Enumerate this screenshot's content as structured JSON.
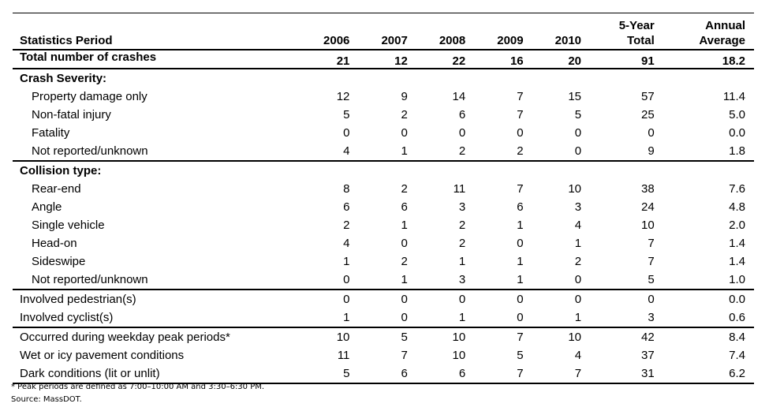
{
  "header": {
    "label": "Statistics Period",
    "years": [
      "2006",
      "2007",
      "2008",
      "2009",
      "2010"
    ],
    "total": "5-Year Total",
    "total_l1": "5-Year",
    "total_l2": "Total",
    "avg_l1": "Annual",
    "avg_l2": "Average"
  },
  "total_row": {
    "label": "Total number of crashes",
    "values": [
      "21",
      "12",
      "22",
      "16",
      "20",
      "91",
      "18.2"
    ]
  },
  "severity": {
    "title": "Crash Severity:",
    "rows": [
      {
        "label": "Property damage only",
        "values": [
          "12",
          "9",
          "14",
          "7",
          "15",
          "57",
          "11.4"
        ]
      },
      {
        "label": "Non-fatal injury",
        "values": [
          "5",
          "2",
          "6",
          "7",
          "5",
          "25",
          "5.0"
        ]
      },
      {
        "label": "Fatality",
        "values": [
          "0",
          "0",
          "0",
          "0",
          "0",
          "0",
          "0.0"
        ]
      },
      {
        "label": "Not reported/unknown",
        "values": [
          "4",
          "1",
          "2",
          "2",
          "0",
          "9",
          "1.8"
        ]
      }
    ]
  },
  "collision": {
    "title": "Collision type:",
    "rows": [
      {
        "label": "Rear-end",
        "values": [
          "8",
          "2",
          "11",
          "7",
          "10",
          "38",
          "7.6"
        ]
      },
      {
        "label": "Angle",
        "values": [
          "6",
          "6",
          "3",
          "6",
          "3",
          "24",
          "4.8"
        ]
      },
      {
        "label": "Single vehicle",
        "values": [
          "2",
          "1",
          "2",
          "1",
          "4",
          "10",
          "2.0"
        ]
      },
      {
        "label": "Head-on",
        "values": [
          "4",
          "0",
          "2",
          "0",
          "1",
          "7",
          "1.4"
        ]
      },
      {
        "label": "Sideswipe",
        "values": [
          "1",
          "2",
          "1",
          "1",
          "2",
          "7",
          "1.4"
        ]
      },
      {
        "label": "Not reported/unknown",
        "values": [
          "0",
          "1",
          "3",
          "1",
          "0",
          "5",
          "1.0"
        ]
      }
    ]
  },
  "involved": [
    {
      "label": "Involved pedestrian(s)",
      "values": [
        "0",
        "0",
        "0",
        "0",
        "0",
        "0",
        "0.0"
      ]
    },
    {
      "label": "Involved cyclist(s)",
      "values": [
        "1",
        "0",
        "1",
        "0",
        "1",
        "3",
        "0.6"
      ]
    }
  ],
  "conditions": [
    {
      "label": "Occurred during weekday peak periods*",
      "values": [
        "10",
        "5",
        "10",
        "7",
        "10",
        "42",
        "8.4"
      ]
    },
    {
      "label": "Wet or icy pavement conditions",
      "values": [
        "11",
        "7",
        "10",
        "5",
        "4",
        "37",
        "7.4"
      ]
    },
    {
      "label": "Dark conditions (lit or unlit)",
      "values": [
        "5",
        "6",
        "6",
        "7",
        "7",
        "31",
        "6.2"
      ]
    }
  ],
  "footnote": "* Peak periods are defined as 7:00–10:00 AM and 3:30–6:30 PM.",
  "source": "Source: MassDOT."
}
